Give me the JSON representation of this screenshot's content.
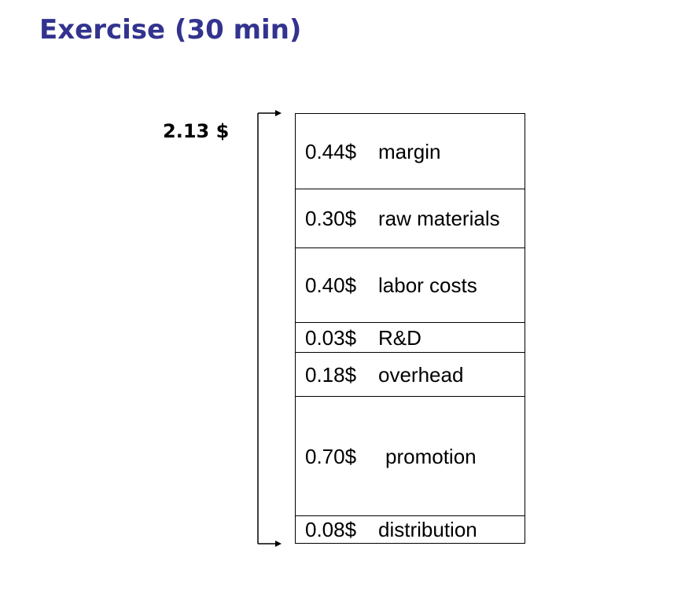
{
  "title": "Exercise (30 min)",
  "total_price": "2.13 $",
  "segments": [
    {
      "value": "0.44$",
      "label": "margin"
    },
    {
      "value": "0.30$",
      "label": "raw materials"
    },
    {
      "value": "0.40$",
      "label": "labor costs"
    },
    {
      "value": "0.03$",
      "label": "R&D"
    },
    {
      "value": "0.18$",
      "label": "overhead"
    },
    {
      "value": "0.70$",
      "label": "promotion"
    },
    {
      "value": "0.08$",
      "label": "distribution"
    }
  ],
  "colors": {
    "title": "#33338f",
    "text": "#000000",
    "lines": "#000000"
  }
}
